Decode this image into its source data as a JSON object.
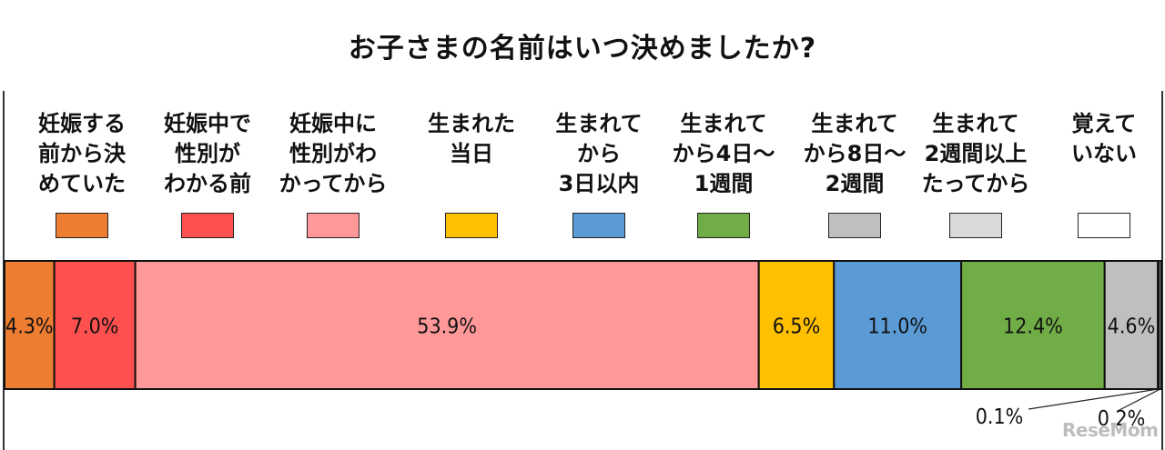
{
  "chart_data": {
    "type": "bar",
    "orientation": "horizontal-stacked-100",
    "title": "お子さまの名前はいつ決めましたか?",
    "legend_position": "top",
    "grid": false,
    "series": [
      {
        "name": "妊娠する前から決めていた",
        "label_lines": [
          "妊娠する",
          "前から決",
          "めていた"
        ],
        "value": 4.3,
        "value_label": "4.3%",
        "color": "#ED7D31"
      },
      {
        "name": "妊娠中で性別がわかる前",
        "label_lines": [
          "妊娠中で",
          "性別が",
          "わかる前"
        ],
        "value": 7.0,
        "value_label": "7.0%",
        "color": "#FF5050"
      },
      {
        "name": "妊娠中に性別がわかってから",
        "label_lines": [
          "妊娠中に",
          "性別がわ",
          "かってから"
        ],
        "value": 53.9,
        "value_label": "53.9%",
        "color": "#FF9999"
      },
      {
        "name": "生まれた当日",
        "label_lines": [
          "生まれた",
          "当日"
        ],
        "value": 6.5,
        "value_label": "6.5%",
        "color": "#FFC000"
      },
      {
        "name": "生まれてから3日以内",
        "label_lines": [
          "生まれて",
          "から",
          "3日以内"
        ],
        "value": 11.0,
        "value_label": "11.0%",
        "color": "#5B9BD5"
      },
      {
        "name": "生まれてから4日～1週間",
        "label_lines": [
          "生まれて",
          "から4日～",
          "1週間"
        ],
        "value": 12.4,
        "value_label": "12.4%",
        "color": "#70AD47"
      },
      {
        "name": "生まれてから8日～2週間",
        "label_lines": [
          "生まれて",
          "から8日～",
          "2週間"
        ],
        "value": 4.6,
        "value_label": "4.6%",
        "color": "#BFBFBF"
      },
      {
        "name": "生まれて2週間以上たってから",
        "label_lines": [
          "生まれて",
          "2週間以上",
          "たってから"
        ],
        "value": 0.1,
        "value_label": "0.1%",
        "color": "#D9D9D9"
      },
      {
        "name": "覚えていない",
        "label_lines": [
          "覚えて",
          "いない"
        ],
        "value": 0.2,
        "value_label": "0.2%",
        "color": "#FFFFFF"
      }
    ]
  },
  "watermark": "ReseMom"
}
